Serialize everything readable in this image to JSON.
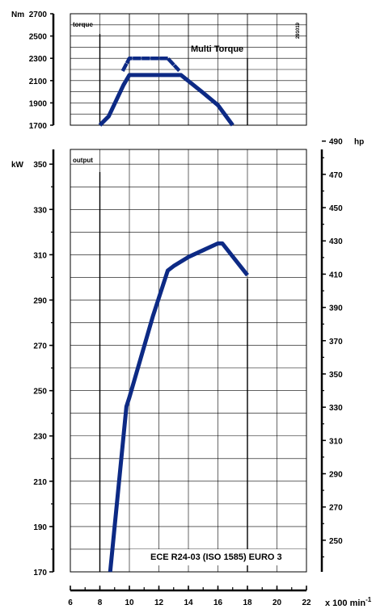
{
  "chart_data": [
    {
      "type": "line",
      "panel": "torque",
      "panel_label": "torque",
      "y_unit_label": "Nm",
      "y_ticks": [
        2700,
        2500,
        2300,
        2100,
        1900,
        1700
      ],
      "ylim": [
        1700,
        2700
      ],
      "xlim": [
        6,
        22
      ],
      "annotations": [
        "Multi Torque",
        "291019"
      ],
      "grid": true,
      "series": [
        {
          "name": "",
          "style": "solid",
          "x": [
            8.0,
            8.6,
            9.6,
            10.0,
            12.5,
            13.5,
            15.0,
            16.0,
            17.0
          ],
          "y": [
            1700,
            1780,
            2060,
            2150,
            2150,
            2150,
            1990,
            1880,
            1700
          ]
        },
        {
          "name": "Multi Torque",
          "style": "dashed",
          "x": [
            9.6,
            10.0,
            12.6,
            13.3
          ],
          "y": [
            2200,
            2300,
            2300,
            2200
          ]
        }
      ]
    },
    {
      "type": "line",
      "panel": "output",
      "panel_label": "output",
      "y_unit_label": "kW",
      "y_ticks": [
        350,
        330,
        310,
        290,
        270,
        250,
        230,
        210,
        190,
        170
      ],
      "ylim": [
        170,
        356.5
      ],
      "y2_unit_label": "hp",
      "y2_ticks": [
        490,
        470,
        450,
        430,
        410,
        390,
        370,
        350,
        330,
        310,
        290,
        270,
        250
      ],
      "y2lim": [
        231,
        485
      ],
      "x_ticks": [
        6,
        8,
        10,
        12,
        14,
        16,
        18,
        20,
        22
      ],
      "x_unit_label": "x 100 min",
      "x_unit_sup": "-1",
      "xlim": [
        6,
        22
      ],
      "annotations": [
        "ECE R24-03 (ISO 1585) EURO 3"
      ],
      "grid": true,
      "series": [
        {
          "name": "",
          "x": [
            8.7,
            9.8,
            10.0,
            11.6,
            12.6,
            13.0,
            14.0,
            16.0,
            16.3,
            18.0
          ],
          "y": [
            170,
            243,
            247,
            283,
            303,
            305,
            309,
            315,
            315,
            301
          ]
        }
      ]
    }
  ],
  "colors": {
    "line": "#0d2a85",
    "axis": "#000000",
    "grid": "#000000"
  }
}
